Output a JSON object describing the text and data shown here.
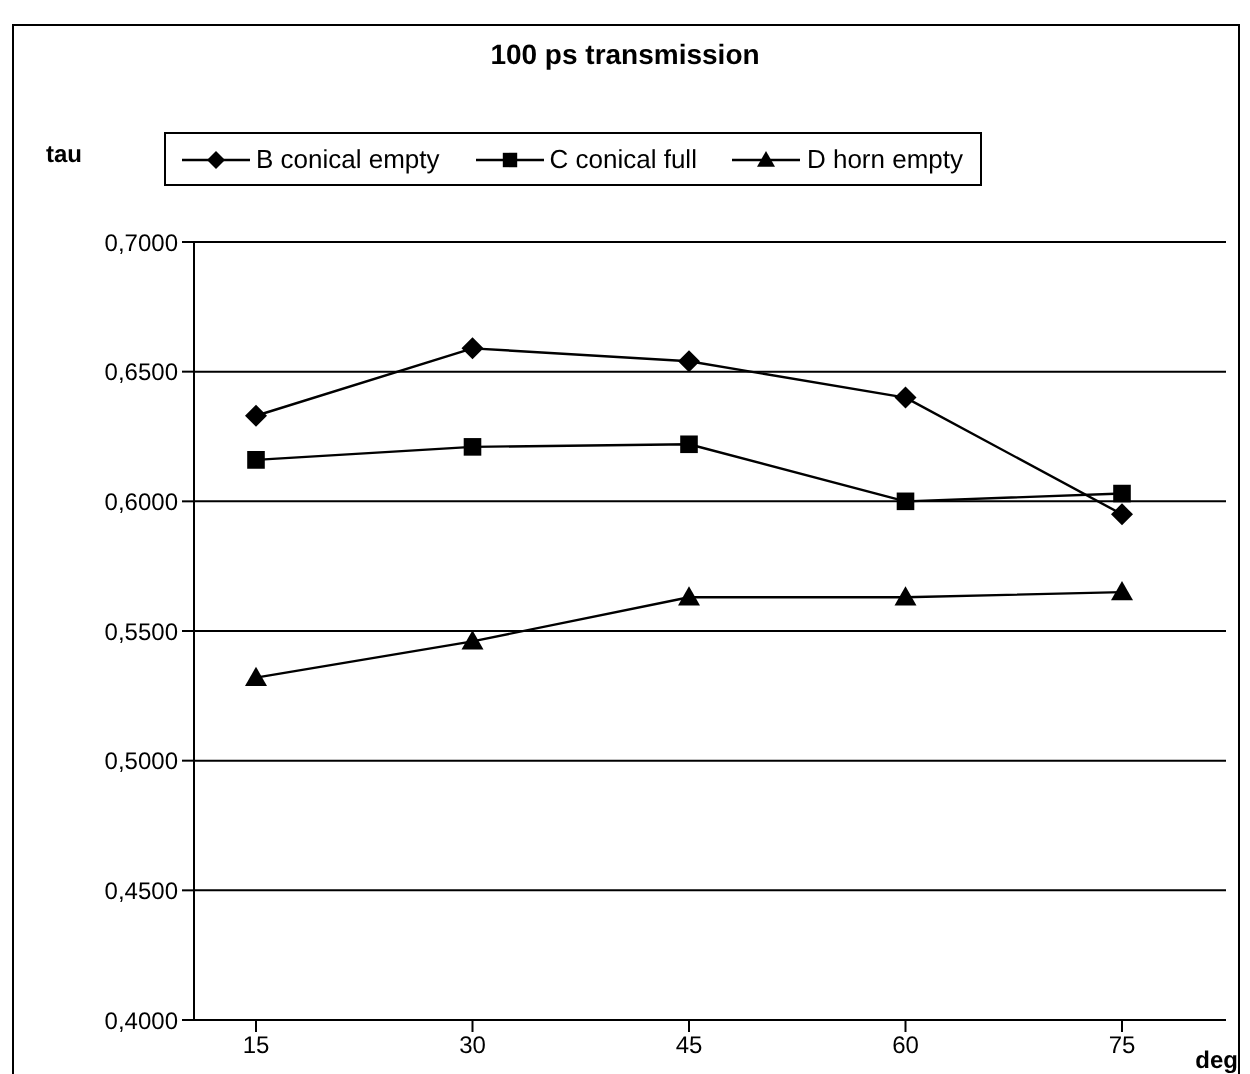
{
  "chart_data": {
    "type": "line",
    "title": "100 ps transmission",
    "xlabel": "deg",
    "ylabel": "tau",
    "categories": [
      "15",
      "30",
      "45",
      "60",
      "75"
    ],
    "series": [
      {
        "name": "B conical empty",
        "color": "#000000",
        "marker": "diamond",
        "values": [
          0.633,
          0.659,
          0.654,
          0.64,
          0.595
        ]
      },
      {
        "name": "C conical full",
        "color": "#000000",
        "marker": "square",
        "values": [
          0.616,
          0.621,
          0.622,
          0.6,
          0.603
        ]
      },
      {
        "name": "D horn empty",
        "color": "#000000",
        "marker": "triangle",
        "values": [
          0.532,
          0.546,
          0.563,
          0.563,
          0.565
        ]
      }
    ],
    "ylim": [
      0.4,
      0.7
    ],
    "yticks": [
      {
        "value": 0.4,
        "label": "0,4000"
      },
      {
        "value": 0.45,
        "label": "0,4500"
      },
      {
        "value": 0.5,
        "label": "0,5000"
      },
      {
        "value": 0.55,
        "label": "0,5500"
      },
      {
        "value": 0.6,
        "label": "0,6000"
      },
      {
        "value": 0.65,
        "label": "0,6500"
      },
      {
        "value": 0.7,
        "label": "0,7000"
      }
    ],
    "grid": "y",
    "legend": "top",
    "line_style": "solid"
  }
}
